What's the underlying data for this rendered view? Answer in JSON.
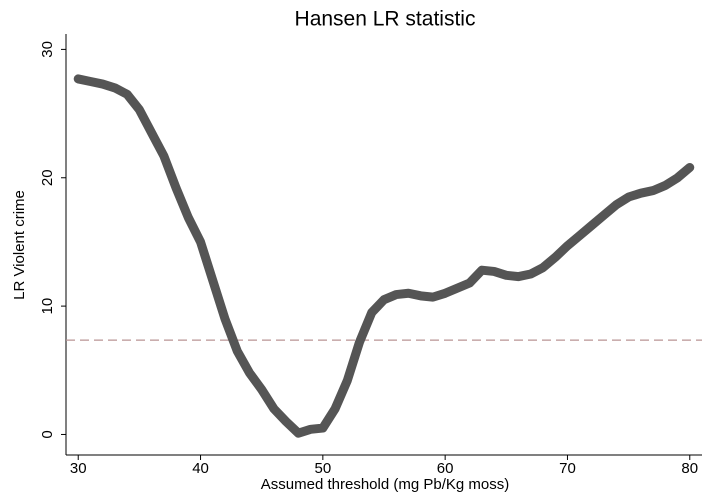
{
  "chart_data": {
    "type": "line",
    "title": "Hansen LR statistic",
    "x_label": "Assumed threshold (mg Pb/Kg moss)",
    "y_label": "LR Violent crime",
    "x": [
      30,
      31,
      32,
      33,
      34,
      35,
      36,
      37,
      38,
      39,
      40,
      41,
      42,
      43,
      44,
      45,
      46,
      47,
      48,
      49,
      50,
      51,
      52,
      53,
      54,
      55,
      56,
      57,
      58,
      59,
      60,
      61,
      62,
      63,
      64,
      65,
      66,
      67,
      68,
      69,
      70,
      71,
      72,
      73,
      74,
      75,
      76,
      77,
      78,
      79,
      80
    ],
    "series": [
      {
        "name": "LR",
        "color": "#555555",
        "values": [
          27.7,
          27.5,
          27.3,
          27.0,
          26.5,
          25.3,
          23.5,
          21.7,
          19.2,
          16.9,
          15.0,
          12.0,
          9.0,
          6.5,
          4.8,
          3.5,
          2.0,
          1.0,
          0.1,
          0.4,
          0.5,
          2.0,
          4.2,
          7.2,
          9.5,
          10.5,
          10.9,
          11.0,
          10.8,
          10.7,
          11.0,
          11.4,
          11.8,
          12.8,
          12.7,
          12.4,
          12.3,
          12.5,
          13.0,
          13.8,
          14.7,
          15.5,
          16.3,
          17.1,
          17.9,
          18.5,
          18.8,
          19.0,
          19.4,
          20.0,
          20.8
        ]
      }
    ],
    "reference_line": 7.35,
    "reference_color": "#b89494",
    "xlim": [
      29,
      81
    ],
    "xticks": [
      30,
      40,
      50,
      60,
      70,
      80
    ],
    "ylim": [
      -1.6,
      31.2
    ],
    "yticks": [
      0,
      10,
      20,
      30
    ]
  }
}
